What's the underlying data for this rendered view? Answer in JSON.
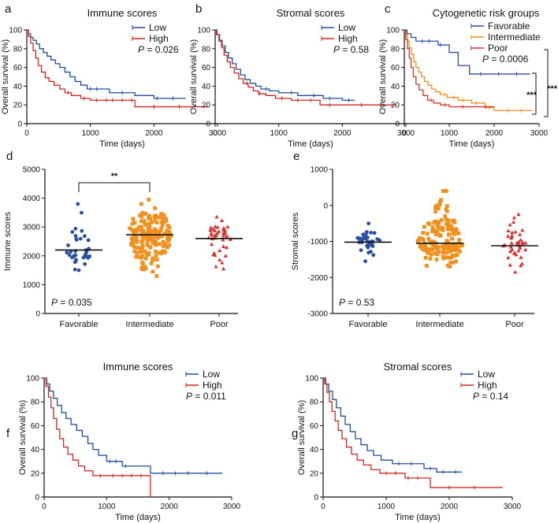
{
  "colors": {
    "low": "#1f4e9c",
    "high": "#d0281f",
    "favorable": "#2b4fa0",
    "intermediate": "#f0901e",
    "poor": "#d8352f",
    "axis": "#111111"
  },
  "chart_data": [
    {
      "panel": "a",
      "type": "line",
      "title": "Immune scores",
      "xlabel": "Time (days)",
      "ylabel": "Overall survival (%)",
      "xlim": [
        0,
        3000
      ],
      "ylim": [
        0,
        100
      ],
      "xticks": [
        "0",
        "1000",
        "2000",
        "3000"
      ],
      "yticks": [
        "0",
        "20",
        "40",
        "60",
        "80",
        "100"
      ],
      "pvalue": "0.026",
      "series": [
        {
          "name": "Low",
          "color": "low",
          "steps": [
            [
              0,
              100
            ],
            [
              30,
              96
            ],
            [
              60,
              92
            ],
            [
              100,
              89
            ],
            [
              150,
              85
            ],
            [
              200,
              80
            ],
            [
              260,
              76
            ],
            [
              320,
              72
            ],
            [
              380,
              68
            ],
            [
              450,
              64
            ],
            [
              520,
              60
            ],
            [
              600,
              55
            ],
            [
              680,
              50
            ],
            [
              760,
              45
            ],
            [
              850,
              41
            ],
            [
              950,
              37
            ],
            [
              1300,
              33
            ],
            [
              1700,
              30
            ],
            [
              2000,
              27
            ],
            [
              2500,
              27
            ]
          ],
          "ticks": [
            1000,
            1100,
            1500,
            2050,
            2300
          ]
        },
        {
          "name": "High",
          "color": "high",
          "steps": [
            [
              0,
              100
            ],
            [
              25,
              93
            ],
            [
              60,
              86
            ],
            [
              100,
              78
            ],
            [
              140,
              70
            ],
            [
              180,
              62
            ],
            [
              230,
              55
            ],
            [
              290,
              49
            ],
            [
              350,
              45
            ],
            [
              430,
              41
            ],
            [
              520,
              37
            ],
            [
              600,
              33
            ],
            [
              700,
              30
            ],
            [
              850,
              27
            ],
            [
              1000,
              25
            ],
            [
              1700,
              18
            ],
            [
              2850,
              18
            ]
          ],
          "ticks": [
            650,
            900,
            1100,
            1250,
            1350,
            1500,
            1650,
            2000,
            2400
          ]
        }
      ]
    },
    {
      "panel": "b",
      "type": "line",
      "title": "Stromal scores",
      "xlabel": "Time (days)",
      "ylabel": "Overall survival (%)",
      "xlim": [
        0,
        3000
      ],
      "ylim": [
        0,
        100
      ],
      "xticks": [
        "0",
        "1000",
        "2000",
        "3000"
      ],
      "yticks": [
        "0",
        "20",
        "40",
        "60",
        "80",
        "100"
      ],
      "pvalue": "0.58",
      "series": [
        {
          "name": "Low",
          "color": "low",
          "steps": [
            [
              0,
              100
            ],
            [
              30,
              95
            ],
            [
              70,
              89
            ],
            [
              110,
              83
            ],
            [
              160,
              76
            ],
            [
              210,
              70
            ],
            [
              270,
              64
            ],
            [
              330,
              58
            ],
            [
              400,
              52
            ],
            [
              470,
              47
            ],
            [
              550,
              43
            ],
            [
              640,
              40
            ],
            [
              720,
              37
            ],
            [
              850,
              35
            ],
            [
              1000,
              33
            ],
            [
              1300,
              30
            ],
            [
              1700,
              27
            ],
            [
              2000,
              25
            ],
            [
              2200,
              25
            ]
          ],
          "ticks": [
            800,
            1200,
            1550,
            1800,
            2100
          ]
        },
        {
          "name": "High",
          "color": "high",
          "steps": [
            [
              0,
              100
            ],
            [
              20,
              95
            ],
            [
              60,
              88
            ],
            [
              100,
              81
            ],
            [
              140,
              73
            ],
            [
              190,
              66
            ],
            [
              240,
              60
            ],
            [
              300,
              54
            ],
            [
              370,
              48
            ],
            [
              440,
              43
            ],
            [
              520,
              39
            ],
            [
              600,
              35
            ],
            [
              680,
              32
            ],
            [
              800,
              30
            ],
            [
              950,
              27
            ],
            [
              1200,
              25
            ],
            [
              1650,
              20
            ],
            [
              2850,
              20
            ]
          ],
          "ticks": [
            500,
            700,
            1050,
            1300,
            1500,
            1800,
            2300,
            2600
          ]
        }
      ]
    },
    {
      "panel": "c",
      "type": "line",
      "title": "Cytogenetic risk groups",
      "xlabel": "Time (days)",
      "ylabel": "Overall survival (%)",
      "xlim": [
        0,
        3000
      ],
      "ylim": [
        0,
        100
      ],
      "xticks": [
        "0",
        "1000",
        "2000",
        "3000"
      ],
      "yticks": [
        "0",
        "20",
        "40",
        "60",
        "80",
        "100"
      ],
      "pvalue": "0.0006",
      "significance": [
        "***",
        "***"
      ],
      "series": [
        {
          "name": "Favorable",
          "color": "favorable",
          "steps": [
            [
              0,
              100
            ],
            [
              60,
              96
            ],
            [
              150,
              92
            ],
            [
              260,
              88
            ],
            [
              750,
              84
            ],
            [
              1000,
              76
            ],
            [
              1200,
              62
            ],
            [
              1450,
              53
            ],
            [
              2800,
              53
            ]
          ],
          "ticks": [
            400,
            550,
            800,
            1700,
            2100,
            2500
          ]
        },
        {
          "name": "Intermediate",
          "color": "intermediate",
          "steps": [
            [
              0,
              100
            ],
            [
              30,
              95
            ],
            [
              70,
              88
            ],
            [
              110,
              81
            ],
            [
              160,
              74
            ],
            [
              210,
              66
            ],
            [
              260,
              60
            ],
            [
              320,
              55
            ],
            [
              380,
              50
            ],
            [
              450,
              45
            ],
            [
              530,
              41
            ],
            [
              610,
              37
            ],
            [
              700,
              34
            ],
            [
              800,
              31
            ],
            [
              950,
              28
            ],
            [
              1200,
              25
            ],
            [
              1500,
              22
            ],
            [
              1800,
              17
            ],
            [
              2000,
              14
            ],
            [
              2850,
              14
            ]
          ],
          "ticks": [
            900,
            1100,
            1300,
            1600,
            1900,
            2300,
            2600
          ]
        },
        {
          "name": "Poor",
          "color": "poor",
          "steps": [
            [
              0,
              100
            ],
            [
              30,
              90
            ],
            [
              70,
              80
            ],
            [
              110,
              70
            ],
            [
              150,
              60
            ],
            [
              200,
              50
            ],
            [
              260,
              42
            ],
            [
              330,
              36
            ],
            [
              420,
              30
            ],
            [
              520,
              25
            ],
            [
              650,
              22
            ],
            [
              800,
              20
            ],
            [
              1000,
              18
            ],
            [
              2000,
              18
            ]
          ],
          "ticks": [
            600,
            900,
            1300,
            1800
          ]
        }
      ]
    },
    {
      "panel": "d",
      "type": "scatter",
      "title": "",
      "ylabel": "Immune scores",
      "ylim": [
        0,
        5000
      ],
      "yticks": [
        "0",
        "1000",
        "2000",
        "3000",
        "4000",
        "5000"
      ],
      "categories": [
        "Favorable",
        "Intermediate",
        "Poor"
      ],
      "means": [
        2200,
        2730,
        2600
      ],
      "count": [
        35,
        170,
        40
      ],
      "spread": [
        [
          1500,
          3800
        ],
        [
          1300,
          3950
        ],
        [
          1550,
          3350
        ]
      ],
      "pvalue": "0.035",
      "significance": "**"
    },
    {
      "panel": "e",
      "type": "scatter",
      "title": "",
      "ylabel": "Stromal scores",
      "ylim": [
        -3000,
        1000
      ],
      "yticks": [
        "-3000",
        "-2000",
        "-1000",
        "0",
        "1000"
      ],
      "categories": [
        "Favorable",
        "Intermediate",
        "Poor"
      ],
      "means": [
        -1020,
        -1050,
        -1120
      ],
      "count": [
        35,
        170,
        40
      ],
      "spread": [
        [
          -1550,
          -500
        ],
        [
          -1700,
          400
        ],
        [
          -1850,
          -250
        ]
      ],
      "pvalue": "0.53"
    },
    {
      "panel": "f",
      "type": "line",
      "title": "Immune scores",
      "xlabel": "Time (days)",
      "ylabel": "Overall survival (%)",
      "xlim": [
        0,
        3000
      ],
      "ylim": [
        0,
        100
      ],
      "xticks": [
        "0",
        "1000",
        "2000",
        "3000"
      ],
      "yticks": [
        "0",
        "20",
        "40",
        "60",
        "80",
        "100"
      ],
      "pvalue": "0.011",
      "series": [
        {
          "name": "Low",
          "color": "low",
          "steps": [
            [
              0,
              100
            ],
            [
              40,
              95
            ],
            [
              90,
              89
            ],
            [
              150,
              83
            ],
            [
              210,
              77
            ],
            [
              280,
              71
            ],
            [
              350,
              66
            ],
            [
              430,
              61
            ],
            [
              520,
              56
            ],
            [
              610,
              51
            ],
            [
              700,
              45
            ],
            [
              780,
              40
            ],
            [
              870,
              35
            ],
            [
              1000,
              30
            ],
            [
              1250,
              26
            ],
            [
              1700,
              20
            ],
            [
              2850,
              20
            ]
          ],
          "ticks": [
            1050,
            1150,
            1300,
            1900,
            2100,
            2300,
            2600
          ]
        },
        {
          "name": "High",
          "color": "high",
          "steps": [
            [
              0,
              100
            ],
            [
              30,
              93
            ],
            [
              70,
              84
            ],
            [
              110,
              75
            ],
            [
              150,
              66
            ],
            [
              200,
              57
            ],
            [
              250,
              49
            ],
            [
              310,
              42
            ],
            [
              380,
              36
            ],
            [
              460,
              31
            ],
            [
              550,
              26
            ],
            [
              650,
              22
            ],
            [
              780,
              18
            ],
            [
              1700,
              18
            ],
            [
              1700,
              0
            ]
          ],
          "ticks": [
            900,
            1100,
            1250,
            1400,
            1550
          ]
        }
      ]
    },
    {
      "panel": "g",
      "type": "line",
      "title": "Stromal scores",
      "xlabel": "Time (days)",
      "ylabel": "Overall survival (%)",
      "xlim": [
        0,
        3000
      ],
      "ylim": [
        0,
        100
      ],
      "xticks": [
        "0",
        "1000",
        "2000",
        "3000"
      ],
      "yticks": [
        "0",
        "20",
        "40",
        "60",
        "80",
        "100"
      ],
      "pvalue": "0.14",
      "series": [
        {
          "name": "Low",
          "color": "low",
          "steps": [
            [
              0,
              100
            ],
            [
              40,
              95
            ],
            [
              90,
              89
            ],
            [
              150,
              82
            ],
            [
              210,
              75
            ],
            [
              280,
              68
            ],
            [
              350,
              61
            ],
            [
              430,
              55
            ],
            [
              510,
              49
            ],
            [
              600,
              44
            ],
            [
              700,
              39
            ],
            [
              800,
              35
            ],
            [
              920,
              31
            ],
            [
              1100,
              28
            ],
            [
              1600,
              24
            ],
            [
              1800,
              21
            ],
            [
              2200,
              21
            ]
          ],
          "ticks": [
            1200,
            1400,
            1700,
            1900,
            2100
          ]
        },
        {
          "name": "High",
          "color": "high",
          "steps": [
            [
              0,
              100
            ],
            [
              25,
              95
            ],
            [
              60,
              88
            ],
            [
              100,
              80
            ],
            [
              140,
              72
            ],
            [
              190,
              64
            ],
            [
              240,
              56
            ],
            [
              300,
              49
            ],
            [
              370,
              42
            ],
            [
              450,
              36
            ],
            [
              540,
              31
            ],
            [
              640,
              27
            ],
            [
              760,
              23
            ],
            [
              900,
              20
            ],
            [
              1300,
              16
            ],
            [
              1700,
              8
            ],
            [
              2850,
              8
            ]
          ],
          "ticks": [
            1000,
            1150,
            1350,
            1500,
            2000,
            2400
          ]
        }
      ]
    }
  ]
}
